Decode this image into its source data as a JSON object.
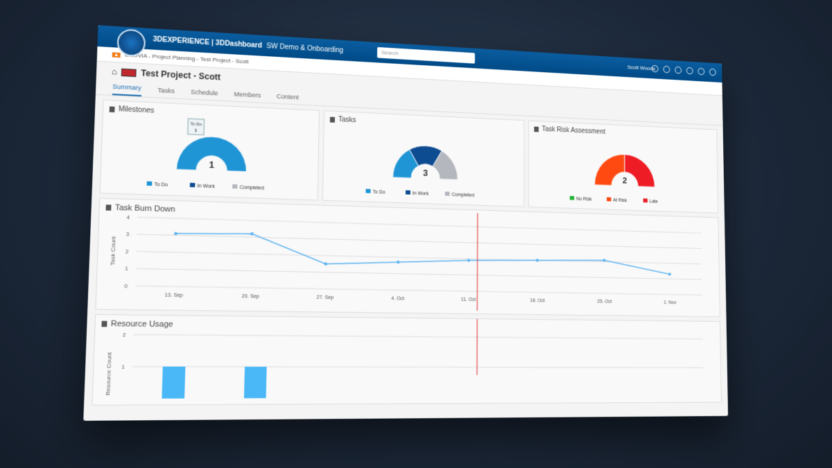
{
  "header": {
    "brand": "3DEXPERIENCE | 3DDashboard",
    "dashboard": "SW Demo & Onboarding",
    "search_placeholder": "Search",
    "user": "Scott Woods"
  },
  "breadcrumb": "ENOVIA - Project Planning - Test Project - Scott",
  "page_title": "Test Project - Scott",
  "tabs": [
    "Summary",
    "Tasks",
    "Schedule",
    "Members",
    "Content"
  ],
  "chart_data": [
    {
      "type": "donut",
      "title": "Milestones",
      "categories": [
        "To Do",
        "In Work",
        "Completed"
      ],
      "values": [
        1,
        0,
        0
      ],
      "colors": [
        "#1f95d6",
        "#0e4c92",
        "#b4b7bd"
      ],
      "total": 1,
      "tooltip": {
        "label": "To Do",
        "value": 1
      }
    },
    {
      "type": "donut",
      "title": "Tasks",
      "categories": [
        "To Do",
        "In Work",
        "Completed"
      ],
      "values": [
        1,
        1,
        1
      ],
      "colors": [
        "#1f95d6",
        "#0e4c92",
        "#b4b7bd"
      ],
      "total": 3
    },
    {
      "type": "donut",
      "title": "Task Risk Assessment",
      "categories": [
        "No Risk",
        "At Risk",
        "Late"
      ],
      "values": [
        0,
        1,
        1
      ],
      "colors": [
        "#27b33a",
        "#ff4b12",
        "#ee1c25"
      ],
      "total": 2
    },
    {
      "type": "line",
      "title": "Task Burn Down",
      "y_label": "Task Count",
      "categories": [
        "13. Sep",
        "20. Sep",
        "27. Sep",
        "4. Oct",
        "11. Oct",
        "18. Oct",
        "25. Oct",
        "1. Nov"
      ],
      "values": [
        3.1,
        3.2,
        1.5,
        1.7,
        1.9,
        2.0,
        2.1,
        1.3
      ],
      "color": "#5cb3f0",
      "ylim": [
        0,
        4
      ],
      "yticks": [
        0,
        1,
        2,
        3,
        4
      ],
      "grid": true
    },
    {
      "type": "bar",
      "title": "Resource Usage",
      "y_label": "Resource Count",
      "categories": [
        null,
        null
      ],
      "values": [
        1,
        1
      ],
      "color": "#4ab8f7",
      "ylim": [
        0,
        2
      ],
      "yticks": [
        1,
        2
      ],
      "grid": true
    }
  ]
}
